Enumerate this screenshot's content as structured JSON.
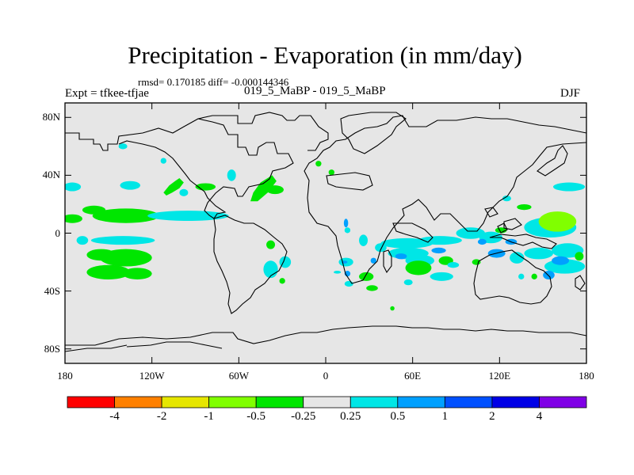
{
  "header": {
    "title": "Precipitation - Evaporation (in mm/day)",
    "stats": "rmsd= 0.170185 diff= -0.000144346",
    "experiment": "Expt = tfkee-tfjae",
    "case": "019_5_MaBP - 019_5_MaBP",
    "season": "DJF"
  },
  "colors": {
    "ocean": "#e6e6e6",
    "coast": "#000000",
    "bins": [
      "#ff0000",
      "#ff8000",
      "#e6e600",
      "#80ff00",
      "#00e600",
      "#e6e6e6",
      "#00e6e6",
      "#00a0ff",
      "#0050ff",
      "#0000e6",
      "#8000e6"
    ]
  },
  "chart_data": {
    "type": "heatmap",
    "title": "Precipitation - Evaporation (in mm/day)",
    "xlim": [
      -180,
      180
    ],
    "ylim": [
      -90,
      90
    ],
    "x_ticks": [
      {
        "value": -180,
        "label": "180"
      },
      {
        "value": -120,
        "label": "120W"
      },
      {
        "value": -60,
        "label": "60W"
      },
      {
        "value": 0,
        "label": "0"
      },
      {
        "value": 60,
        "label": "60E"
      },
      {
        "value": 120,
        "label": "120E"
      },
      {
        "value": 180,
        "label": "180"
      }
    ],
    "y_ticks": [
      {
        "value": 80,
        "label": "80N"
      },
      {
        "value": 40,
        "label": "40N"
      },
      {
        "value": 0,
        "label": "0"
      },
      {
        "value": -40,
        "label": "40S"
      },
      {
        "value": -80,
        "label": "80S"
      }
    ],
    "colorbar": {
      "levels": [
        "-4",
        "-2",
        "-1",
        "-0.5",
        "-0.25",
        "0.25",
        "0.5",
        "1",
        "2",
        "4"
      ]
    },
    "anomalies": [
      {
        "lon": -175,
        "lat": 10,
        "rx": 7,
        "ry": 3,
        "bin": 4
      },
      {
        "lon": -138,
        "lat": 12,
        "rx": 23,
        "ry": 5,
        "bin": 4
      },
      {
        "lon": -160,
        "lat": 16,
        "rx": 8,
        "ry": 3,
        "bin": 4
      },
      {
        "lon": -95,
        "lat": 12,
        "rx": 28,
        "ry": 3.5,
        "bin": 6
      },
      {
        "lon": -140,
        "lat": -5,
        "rx": 22,
        "ry": 3,
        "bin": 6
      },
      {
        "lon": -155,
        "lat": -15,
        "rx": 10,
        "ry": 4,
        "bin": 4
      },
      {
        "lon": -138,
        "lat": -17,
        "rx": 18,
        "ry": 6,
        "bin": 4
      },
      {
        "lon": -150,
        "lat": -27,
        "rx": 15,
        "ry": 5,
        "bin": 4
      },
      {
        "lon": -130,
        "lat": -28,
        "rx": 10,
        "ry": 4,
        "bin": 4
      },
      {
        "lon": -168,
        "lat": -5,
        "rx": 4,
        "ry": 3,
        "bin": 6
      },
      {
        "lon": -175,
        "lat": 32,
        "rx": 6,
        "ry": 3,
        "bin": 6
      },
      {
        "lon": -135,
        "lat": 33,
        "rx": 7,
        "ry": 3,
        "bin": 6
      },
      {
        "lon": -83,
        "lat": 32,
        "rx": 7,
        "ry": 2.5,
        "bin": 4
      },
      {
        "lon": -98,
        "lat": 28,
        "rx": 3,
        "ry": 2.5,
        "bin": 6
      },
      {
        "lon": -65,
        "lat": 40,
        "rx": 3,
        "ry": 4,
        "bin": 6
      },
      {
        "lon": -35,
        "lat": 30,
        "rx": 6,
        "ry": 3,
        "bin": 4
      },
      {
        "lon": -38,
        "lat": -8,
        "rx": 3,
        "ry": 3,
        "bin": 4
      },
      {
        "lon": -28,
        "lat": -20,
        "rx": 4,
        "ry": 4,
        "bin": 6
      },
      {
        "lon": -38,
        "lat": -25,
        "rx": 5,
        "ry": 6,
        "bin": 6
      },
      {
        "lon": -30,
        "lat": -33,
        "rx": 2,
        "ry": 2,
        "bin": 4
      },
      {
        "lon": -140,
        "lat": 60,
        "rx": 3,
        "ry": 2,
        "bin": 6
      },
      {
        "lon": -112,
        "lat": 50,
        "rx": 2,
        "ry": 2,
        "bin": 6
      },
      {
        "lon": -5,
        "lat": 48,
        "rx": 2,
        "ry": 2,
        "bin": 4
      },
      {
        "lon": 4,
        "lat": 42,
        "rx": 2,
        "ry": 2,
        "bin": 4
      },
      {
        "lon": 14,
        "lat": 7,
        "rx": 1.5,
        "ry": 3,
        "bin": 7
      },
      {
        "lon": 15,
        "lat": 2,
        "rx": 2,
        "ry": 2,
        "bin": 6
      },
      {
        "lon": 26,
        "lat": -5,
        "rx": 3,
        "ry": 4,
        "bin": 6
      },
      {
        "lon": 14,
        "lat": -20,
        "rx": 5,
        "ry": 3,
        "bin": 6
      },
      {
        "lon": 13,
        "lat": -20,
        "rx": 2,
        "ry": 1,
        "bin": 7
      },
      {
        "lon": 8,
        "lat": -27,
        "rx": 2.5,
        "ry": 1,
        "bin": 6
      },
      {
        "lon": 15,
        "lat": -28,
        "rx": 2,
        "ry": 2,
        "bin": 7
      },
      {
        "lon": 16,
        "lat": -35,
        "rx": 3,
        "ry": 2,
        "bin": 6
      },
      {
        "lon": 28,
        "lat": -30,
        "rx": 5,
        "ry": 3,
        "bin": 4
      },
      {
        "lon": 32,
        "lat": -38,
        "rx": 4,
        "ry": 2,
        "bin": 4
      },
      {
        "lon": 46,
        "lat": -52,
        "rx": 1.5,
        "ry": 1.5,
        "bin": 4
      },
      {
        "lon": 38,
        "lat": -10,
        "rx": 4,
        "ry": 3,
        "bin": 6
      },
      {
        "lon": 33,
        "lat": -19,
        "rx": 2,
        "ry": 2,
        "bin": 7
      },
      {
        "lon": 56,
        "lat": -7,
        "rx": 18,
        "ry": 3.5,
        "bin": 6
      },
      {
        "lon": 79,
        "lat": -5,
        "rx": 15,
        "ry": 3,
        "bin": 6
      },
      {
        "lon": 100,
        "lat": 0,
        "rx": 10,
        "ry": 4,
        "bin": 6
      },
      {
        "lon": 57,
        "lat": -14,
        "rx": 14,
        "ry": 4,
        "bin": 6
      },
      {
        "lon": 65,
        "lat": -19,
        "rx": 10,
        "ry": 4,
        "bin": 6
      },
      {
        "lon": 52,
        "lat": -16,
        "rx": 4,
        "ry": 2,
        "bin": 7
      },
      {
        "lon": 78,
        "lat": -12,
        "rx": 5,
        "ry": 2,
        "bin": 7
      },
      {
        "lon": 64,
        "lat": -24,
        "rx": 9,
        "ry": 5,
        "bin": 4
      },
      {
        "lon": 83,
        "lat": -19,
        "rx": 5,
        "ry": 3,
        "bin": 4
      },
      {
        "lon": 104,
        "lat": -20,
        "rx": 3,
        "ry": 2,
        "bin": 4
      },
      {
        "lon": 88,
        "lat": -22,
        "rx": 4,
        "ry": 2,
        "bin": 6
      },
      {
        "lon": 57,
        "lat": -34,
        "rx": 3,
        "ry": 2,
        "bin": 6
      },
      {
        "lon": 80,
        "lat": -30,
        "rx": 8,
        "ry": 3,
        "bin": 6
      },
      {
        "lon": 114,
        "lat": -3,
        "rx": 8,
        "ry": 4,
        "bin": 6
      },
      {
        "lon": 108,
        "lat": -6,
        "rx": 3,
        "ry": 2,
        "bin": 7
      },
      {
        "lon": 118,
        "lat": -14,
        "rx": 6,
        "ry": 3,
        "bin": 7
      },
      {
        "lon": 128,
        "lat": -6,
        "rx": 4,
        "ry": 2,
        "bin": 7
      },
      {
        "lon": 121,
        "lat": 2,
        "rx": 4,
        "ry": 2,
        "bin": 4
      },
      {
        "lon": 132,
        "lat": -17,
        "rx": 5,
        "ry": 4,
        "bin": 6
      },
      {
        "lon": 135,
        "lat": -30,
        "rx": 2,
        "ry": 2,
        "bin": 6
      },
      {
        "lon": 155,
        "lat": 4,
        "rx": 18,
        "ry": 7,
        "bin": 6
      },
      {
        "lon": 160,
        "lat": 8,
        "rx": 13,
        "ry": 7,
        "bin": 3
      },
      {
        "lon": 147,
        "lat": -14,
        "rx": 10,
        "ry": 4,
        "bin": 6
      },
      {
        "lon": 167,
        "lat": -12,
        "rx": 11,
        "ry": 5,
        "bin": 6
      },
      {
        "lon": 165,
        "lat": -23,
        "rx": 14,
        "ry": 5,
        "bin": 6
      },
      {
        "lon": 162,
        "lat": -19,
        "rx": 6,
        "ry": 3,
        "bin": 7
      },
      {
        "lon": 154,
        "lat": -29,
        "rx": 4,
        "ry": 3,
        "bin": 7
      },
      {
        "lon": 175,
        "lat": -16,
        "rx": 3,
        "ry": 3,
        "bin": 4
      },
      {
        "lon": 144,
        "lat": -30,
        "rx": 2,
        "ry": 2,
        "bin": 4
      },
      {
        "lon": 168,
        "lat": 32,
        "rx": 11,
        "ry": 3,
        "bin": 6
      },
      {
        "lon": 137,
        "lat": 18,
        "rx": 5,
        "ry": 2,
        "bin": 4
      },
      {
        "lon": 125,
        "lat": 24,
        "rx": 3,
        "ry": 2,
        "bin": 6
      }
    ],
    "anomaly_polygons": [
      {
        "points": [
          [
            -104,
            36
          ],
          [
            -101,
            38
          ],
          [
            -98,
            35
          ],
          [
            -101,
            31
          ],
          [
            -106,
            28
          ],
          [
            -110,
            26
          ],
          [
            -112,
            28
          ],
          [
            -108,
            33
          ]
        ],
        "bin": 4
      },
      {
        "points": [
          [
            -45,
            35
          ],
          [
            -37,
            40
          ],
          [
            -34,
            36
          ],
          [
            -40,
            28
          ],
          [
            -47,
            22
          ],
          [
            -52,
            22
          ],
          [
            -50,
            28
          ]
        ],
        "bin": 4
      }
    ]
  }
}
